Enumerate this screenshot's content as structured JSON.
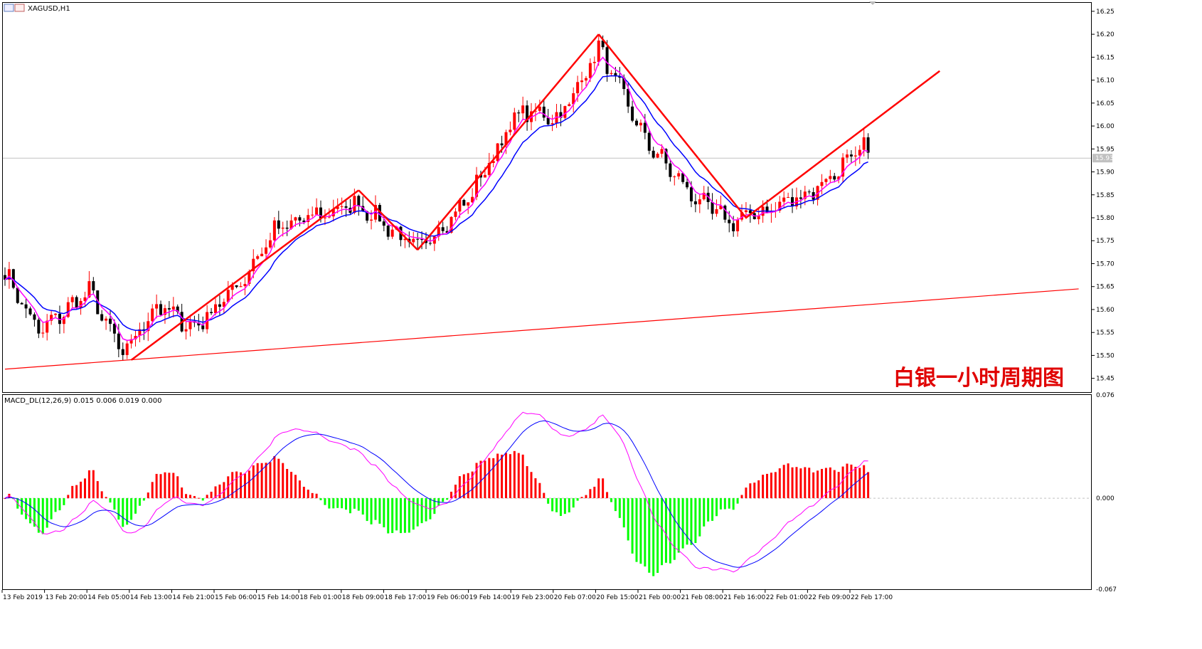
{
  "window": {
    "title": "XAGUSD,H1"
  },
  "caption": "白银一小时周期图",
  "colors": {
    "up": "#ff0000",
    "down": "#000000",
    "ma_fast": "#ff00ff",
    "ma_slow": "#0000ff",
    "trend": "#ff0000",
    "hist_pos": "#ff0000",
    "hist_neg": "#00ff00",
    "grid": "#c0c0c0"
  },
  "chart_data": [
    {
      "type": "candlestick",
      "symbol": "XAGUSD",
      "timeframe": "H1",
      "ylim": [
        15.42,
        16.27
      ],
      "yticks": [
        "16.25",
        "16.20",
        "16.15",
        "16.10",
        "16.05",
        "16.00",
        "15.95",
        "15.90",
        "15.85",
        "15.80",
        "15.75",
        "15.70",
        "15.65",
        "15.60",
        "15.55",
        "15.50",
        "15.45"
      ],
      "current_price": "15.93",
      "xticks": [
        "13 Feb 2019",
        "13 Feb 20:00",
        "14 Feb 05:00",
        "14 Feb 13:00",
        "14 Feb 21:00",
        "15 Feb 06:00",
        "15 Feb 14:00",
        "18 Feb 01:00",
        "18 Feb 09:00",
        "18 Feb 17:00",
        "19 Feb 06:00",
        "19 Feb 14:00",
        "19 Feb 23:00",
        "20 Feb 07:00",
        "20 Feb 15:00",
        "21 Feb 00:00",
        "21 Feb 08:00",
        "21 Feb 16:00",
        "22 Feb 01:00",
        "22 Feb 09:00",
        "22 Feb 17:00"
      ],
      "anchors": [
        {
          "bar": 0,
          "close": 15.68
        },
        {
          "bar": 8,
          "close": 15.55
        },
        {
          "bar": 20,
          "close": 15.64
        },
        {
          "bar": 28,
          "close": 15.5
        },
        {
          "bar": 36,
          "close": 15.61
        },
        {
          "bar": 45,
          "close": 15.56
        },
        {
          "bar": 56,
          "close": 15.66
        },
        {
          "bar": 64,
          "close": 15.77
        },
        {
          "bar": 72,
          "close": 15.8
        },
        {
          "bar": 84,
          "close": 15.83
        },
        {
          "bar": 98,
          "close": 15.73
        },
        {
          "bar": 110,
          "close": 15.84
        },
        {
          "bar": 122,
          "close": 16.03
        },
        {
          "bar": 132,
          "close": 16.02
        },
        {
          "bar": 141,
          "close": 16.17
        },
        {
          "bar": 152,
          "close": 15.97
        },
        {
          "bar": 163,
          "close": 15.85
        },
        {
          "bar": 172,
          "close": 15.79
        },
        {
          "bar": 182,
          "close": 15.82
        },
        {
          "bar": 192,
          "close": 15.86
        },
        {
          "bar": 204,
          "close": 15.95
        }
      ],
      "trendlines": [
        {
          "bar_from": 30,
          "from": 15.49,
          "bar_to": 84,
          "to": 15.86
        },
        {
          "bar_from": 84,
          "from": 15.86,
          "bar_to": 98,
          "to": 15.73
        },
        {
          "bar_from": 98,
          "from": 15.73,
          "bar_to": 141,
          "to": 16.2
        },
        {
          "bar_from": 141,
          "from": 16.2,
          "bar_to": 176,
          "to": 15.8
        },
        {
          "bar_from": 176,
          "from": 15.8,
          "bar_to": 222,
          "to": 16.12
        },
        {
          "bar_from": 0,
          "from": 15.47,
          "bar_to": 255,
          "to": 15.645
        }
      ]
    },
    {
      "type": "macd",
      "title": "MACD_DL(12,26,9) 0.015 0.006 0.019 0.000",
      "ylim": [
        -0.067,
        0.076
      ],
      "yticks": [
        "0.076",
        "0.000",
        "-0.067"
      ]
    }
  ]
}
